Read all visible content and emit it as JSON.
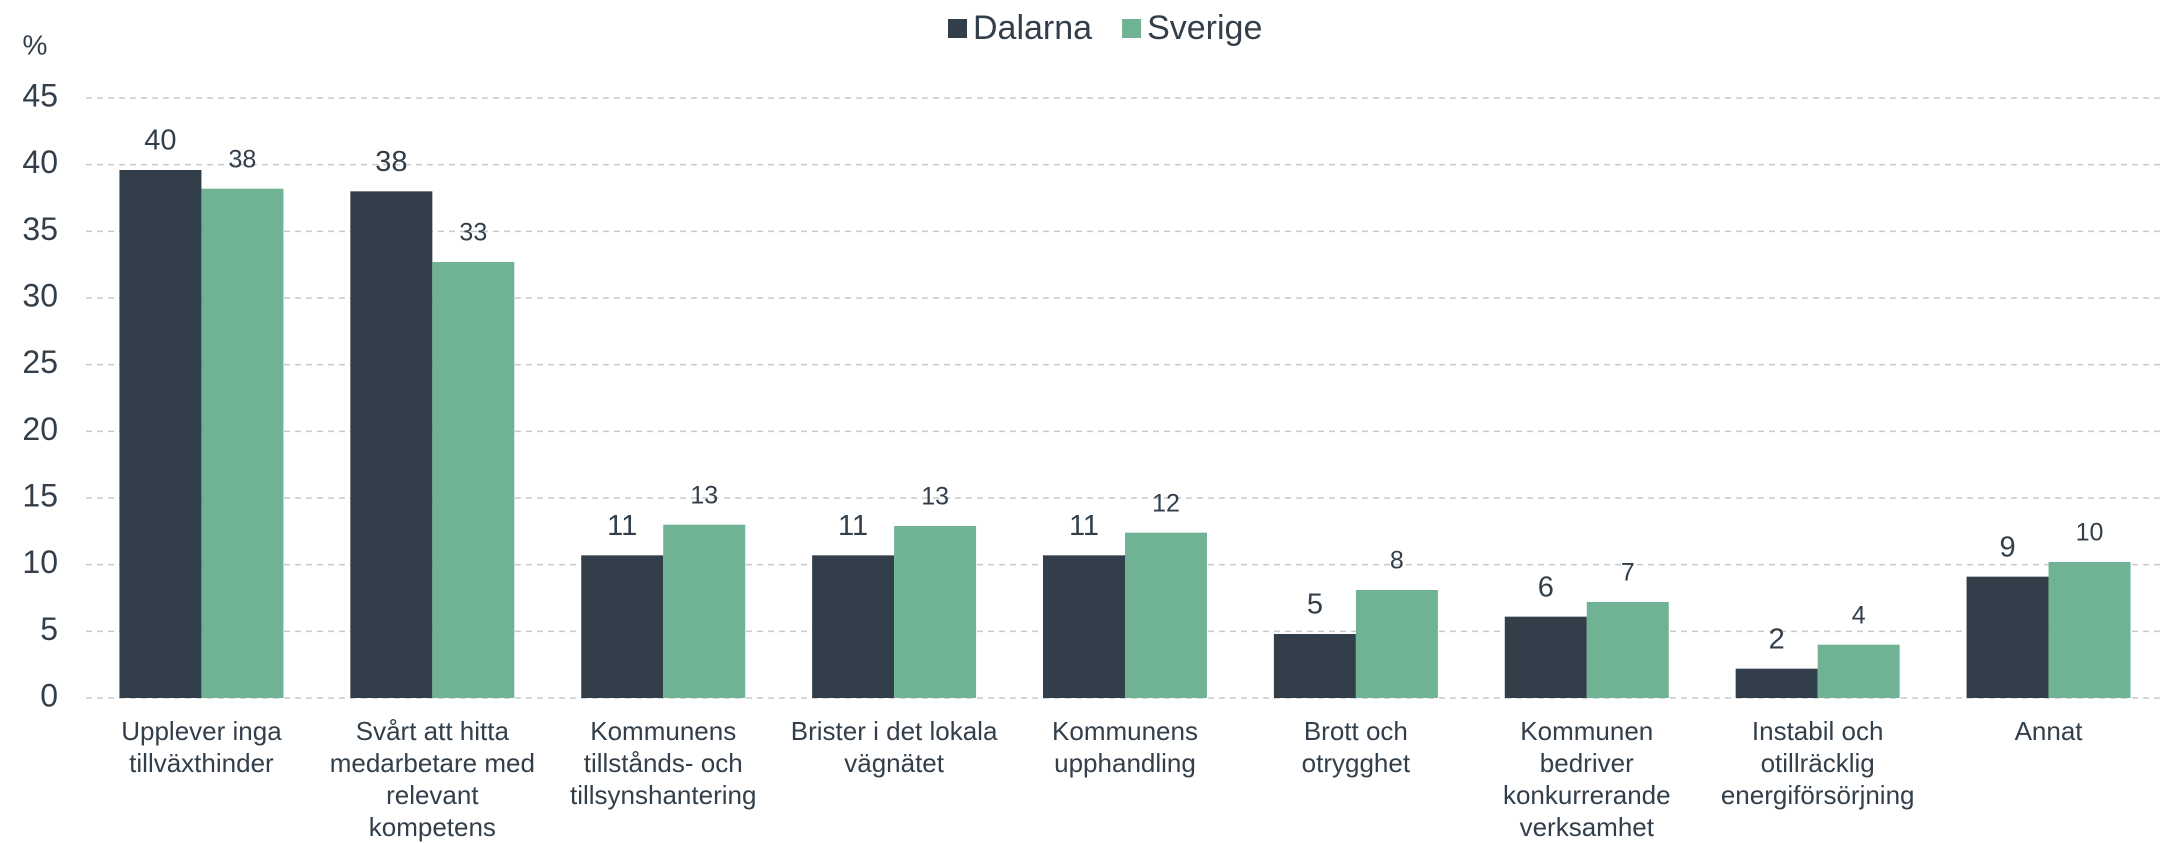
{
  "chart_data": {
    "type": "bar",
    "y_label": "%",
    "categories": [
      "Upplever inga\ntillväxthinder",
      "Svårt att hitta\nmedarbetare med\nrelevant\nkompetens",
      "Kommunens\ntillstånds- och\ntillsynshantering",
      "Brister i det lokala\nvägnätet",
      "Kommunens\nupphandling",
      "Brott och\notrygghet",
      "Kommunen\nbedriver\nkonkurrerande\nverksamhet",
      "Instabil och\notillräcklig\nenergiförsörjning",
      "Annat"
    ],
    "series": [
      {
        "name": "Dalarna",
        "color": "#323f4b",
        "values": [
          39.6,
          38.0,
          10.7,
          10.7,
          10.7,
          4.8,
          6.1,
          2.2,
          9.1
        ],
        "value_labels": [
          "40",
          "38",
          "11",
          "11",
          "11",
          "5",
          "6",
          "2",
          "9"
        ]
      },
      {
        "name": "Sverige",
        "color": "#70b294",
        "values": [
          38.2,
          32.7,
          13.0,
          12.9,
          12.4,
          8.1,
          7.2,
          4.0,
          10.2
        ],
        "value_labels": [
          "38",
          "33",
          "13",
          "13",
          "12",
          "8",
          "7",
          "4",
          "10"
        ]
      }
    ],
    "ylim": [
      0,
      45
    ],
    "yticks": [
      0,
      5,
      10,
      15,
      20,
      25,
      30,
      35,
      40,
      45
    ],
    "grid": true,
    "legend": "top"
  }
}
